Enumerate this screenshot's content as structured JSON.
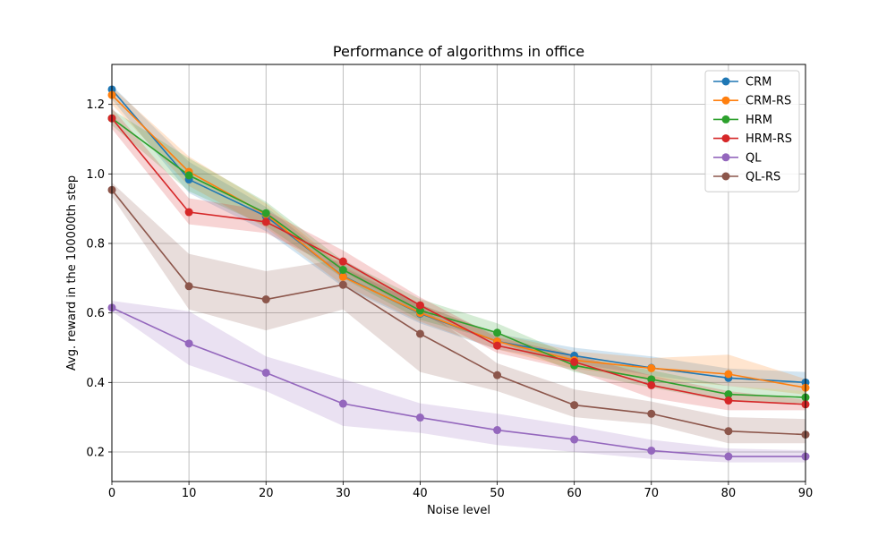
{
  "chart_data": {
    "type": "line",
    "title": "Performance of algorithms in office",
    "xlabel": "Noise level",
    "ylabel": "Avg. reward in the 100000th step",
    "xlim": [
      0,
      90
    ],
    "ylim": [
      0.115,
      1.315
    ],
    "xticks": [
      0,
      10,
      20,
      30,
      40,
      50,
      60,
      70,
      80,
      90
    ],
    "yticks": [
      0.2,
      0.4,
      0.6,
      0.8,
      1.0,
      1.2
    ],
    "yticklabels": [
      "0.2",
      "0.4",
      "0.6",
      "0.8",
      "1.0",
      "1.2"
    ],
    "grid": true,
    "legend_position": "upper-right",
    "x": [
      0,
      10,
      20,
      30,
      40,
      50,
      60,
      70,
      80,
      90
    ],
    "series": [
      {
        "name": "CRM",
        "color": "#1f77b4",
        "values": [
          1.243,
          0.984,
          0.878,
          0.706,
          0.598,
          0.518,
          0.477,
          0.442,
          0.413,
          0.4
        ],
        "lower": [
          1.215,
          0.945,
          0.835,
          0.675,
          0.57,
          0.495,
          0.455,
          0.42,
          0.39,
          0.375
        ],
        "upper": [
          1.255,
          1.035,
          0.905,
          0.73,
          0.625,
          0.54,
          0.5,
          0.475,
          0.44,
          0.43
        ]
      },
      {
        "name": "CRM-RS",
        "color": "#ff7f0e",
        "values": [
          1.227,
          1.006,
          0.884,
          0.704,
          0.6,
          0.518,
          0.464,
          0.441,
          0.424,
          0.385
        ],
        "lower": [
          1.2,
          0.965,
          0.845,
          0.68,
          0.575,
          0.495,
          0.44,
          0.41,
          0.39,
          0.365
        ],
        "upper": [
          1.25,
          1.05,
          0.915,
          0.735,
          0.625,
          0.54,
          0.49,
          0.47,
          0.48,
          0.41
        ]
      },
      {
        "name": "HRM",
        "color": "#2ca02c",
        "values": [
          1.16,
          0.996,
          0.887,
          0.724,
          0.607,
          0.543,
          0.449,
          0.409,
          0.366,
          0.357
        ],
        "lower": [
          1.14,
          0.95,
          0.85,
          0.7,
          0.58,
          0.52,
          0.43,
          0.385,
          0.345,
          0.34
        ],
        "upper": [
          1.185,
          1.045,
          0.92,
          0.75,
          0.64,
          0.57,
          0.475,
          0.435,
          0.39,
          0.375
        ]
      },
      {
        "name": "HRM-RS",
        "color": "#d62728",
        "values": [
          1.16,
          0.89,
          0.862,
          0.748,
          0.622,
          0.506,
          0.459,
          0.392,
          0.348,
          0.337
        ],
        "lower": [
          1.13,
          0.855,
          0.83,
          0.72,
          0.6,
          0.485,
          0.435,
          0.355,
          0.32,
          0.32
        ],
        "upper": [
          1.19,
          0.93,
          0.895,
          0.78,
          0.645,
          0.53,
          0.48,
          0.42,
          0.375,
          0.35
        ]
      },
      {
        "name": "QL",
        "color": "#9467bd",
        "values": [
          0.615,
          0.512,
          0.428,
          0.339,
          0.299,
          0.263,
          0.236,
          0.204,
          0.187,
          0.187
        ],
        "lower": [
          0.605,
          0.45,
          0.375,
          0.275,
          0.255,
          0.22,
          0.2,
          0.18,
          0.17,
          0.17
        ],
        "upper": [
          0.635,
          0.605,
          0.475,
          0.41,
          0.34,
          0.31,
          0.275,
          0.235,
          0.21,
          0.205
        ]
      },
      {
        "name": "QL-RS",
        "color": "#8c564b",
        "values": [
          0.954,
          0.677,
          0.639,
          0.681,
          0.54,
          0.421,
          0.335,
          0.31,
          0.26,
          0.25
        ],
        "lower": [
          0.935,
          0.61,
          0.55,
          0.61,
          0.43,
          0.375,
          0.3,
          0.28,
          0.225,
          0.225
        ],
        "upper": [
          0.975,
          0.77,
          0.72,
          0.755,
          0.62,
          0.455,
          0.38,
          0.345,
          0.3,
          0.295
        ]
      }
    ]
  }
}
